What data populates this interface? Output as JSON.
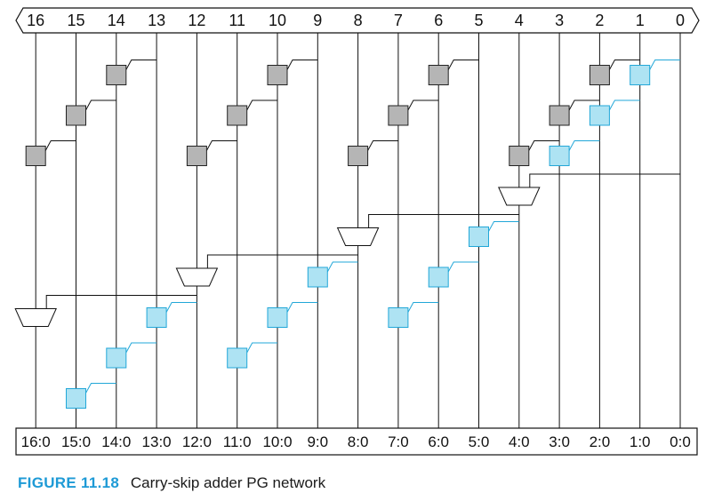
{
  "figure": {
    "number": "FIGURE 11.18",
    "title": "Carry-skip adder PG network"
  },
  "colors": {
    "black_cell": "#b5b5b5",
    "gray_cell_fill": "#aee3f3",
    "gray_cell_stroke": "#22a7d8",
    "gray_wire": "#22a7d8",
    "wire": "#111111",
    "mux_fill": "#ffffff"
  },
  "input_bits": [
    "16",
    "15",
    "14",
    "13",
    "12",
    "11",
    "10",
    "9",
    "8",
    "7",
    "6",
    "5",
    "4",
    "3",
    "2",
    "1",
    "0"
  ],
  "output_groups": [
    "16:0",
    "15:0",
    "14:0",
    "13:0",
    "12:0",
    "11:0",
    "10:0",
    "9:0",
    "8:0",
    "7:0",
    "6:0",
    "5:0",
    "4:0",
    "3:0",
    "2:0",
    "1:0",
    "0:0"
  ],
  "cells": {
    "black": [
      {
        "col": 14,
        "row": 1
      },
      {
        "col": 15,
        "row": 2
      },
      {
        "col": 16,
        "row": 3
      },
      {
        "col": 10,
        "row": 1
      },
      {
        "col": 11,
        "row": 2
      },
      {
        "col": 12,
        "row": 3
      },
      {
        "col": 6,
        "row": 1
      },
      {
        "col": 7,
        "row": 2
      },
      {
        "col": 8,
        "row": 3
      },
      {
        "col": 2,
        "row": 1
      },
      {
        "col": 3,
        "row": 2
      },
      {
        "col": 4,
        "row": 3
      }
    ],
    "gray": [
      {
        "col": 1,
        "row": 1
      },
      {
        "col": 2,
        "row": 2
      },
      {
        "col": 3,
        "row": 3
      },
      {
        "col": 5,
        "row": 5
      },
      {
        "col": 6,
        "row": 6
      },
      {
        "col": 7,
        "row": 7
      },
      {
        "col": 9,
        "row": 6
      },
      {
        "col": 10,
        "row": 7
      },
      {
        "col": 11,
        "row": 8
      },
      {
        "col": 13,
        "row": 7
      },
      {
        "col": 14,
        "row": 8
      },
      {
        "col": 15,
        "row": 9
      }
    ],
    "mux": [
      {
        "col": 4,
        "row": 4,
        "src_col": 0
      },
      {
        "col": 8,
        "row": 5,
        "src_col": 4
      },
      {
        "col": 12,
        "row": 6,
        "src_col": 8
      },
      {
        "col": 16,
        "row": 7,
        "src_col": 12
      }
    ]
  }
}
